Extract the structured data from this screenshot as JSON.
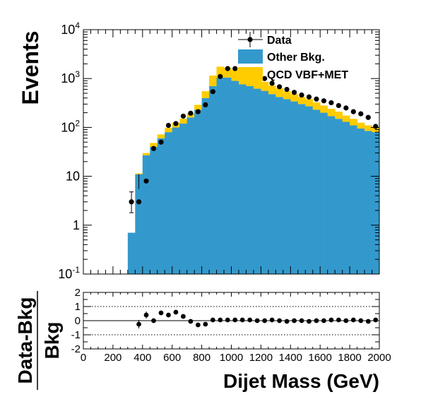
{
  "chart_data": [
    {
      "type": "bar",
      "panel": "main",
      "ylabel": "Events",
      "xlim": [
        0,
        2000
      ],
      "ylim": [
        0.1,
        10000
      ],
      "yscale": "log",
      "y_tick_labels": [
        "10-1",
        "1",
        "10",
        "102",
        "103",
        "104"
      ],
      "bin_edges": [
        300,
        350,
        400,
        450,
        500,
        550,
        600,
        650,
        700,
        750,
        800,
        850,
        900,
        950,
        1000,
        1050,
        1100,
        1150,
        1200,
        1250,
        1300,
        1350,
        1400,
        1450,
        1500,
        1550,
        1600,
        1650,
        1700,
        1750,
        1800,
        1850,
        1900,
        1950,
        2000
      ],
      "legend_position": "top-right",
      "legend": [
        "Data",
        "Other Bkg.",
        "QCD VBF+MET"
      ],
      "series": [
        {
          "name": "Other Bkg.",
          "color": "#3399cc",
          "style": "stacked-histogram",
          "values": [
            0.7,
            11,
            27,
            40,
            60,
            80,
            100,
            120,
            160,
            230,
            400,
            700,
            1050,
            1050,
            900,
            760,
            700,
            620,
            560,
            480,
            420,
            380,
            340,
            300,
            270,
            230,
            200,
            170,
            150,
            130,
            110,
            95,
            85,
            80
          ]
        },
        {
          "name": "QCD VBF+MET",
          "color": "#ffcc00",
          "style": "stacked-histogram",
          "values": [
            0,
            0.5,
            3,
            8,
            12,
            18,
            25,
            30,
            35,
            60,
            150,
            450,
            700,
            600,
            600,
            560,
            420,
            380,
            300,
            240,
            210,
            170,
            140,
            120,
            110,
            95,
            80,
            70,
            60,
            45,
            40,
            30,
            25,
            20
          ]
        },
        {
          "name": "Data",
          "color": "#000000",
          "style": "points-with-errors",
          "x": [
            375,
            425,
            475,
            525,
            575,
            625,
            675,
            725,
            775,
            825,
            875,
            925,
            975,
            1025,
            1075,
            1125,
            1175,
            1225,
            1275,
            1325,
            1375,
            1425,
            1475,
            1525,
            1575,
            1625,
            1675,
            1725,
            1775,
            1825,
            1875,
            1925,
            1975
          ],
          "values": [
            3,
            8,
            37,
            50,
            110,
            120,
            170,
            195,
            210,
            290,
            540,
            1100,
            1600,
            1600,
            1500,
            1300,
            1100,
            1000,
            800,
            680,
            600,
            520,
            460,
            420,
            380,
            350,
            320,
            280,
            250,
            210,
            190,
            160,
            105
          ],
          "first_point": {
            "x": 325,
            "value": 3.0,
            "err_low": 1.8,
            "err_high": 4.8
          }
        }
      ]
    },
    {
      "type": "scatter",
      "panel": "ratio",
      "ylabel": "Data-Bkg / Bkg",
      "ylabel_numerator": "Data-Bkg",
      "ylabel_denominator": "Bkg",
      "xlabel": "Dijet Mass (GeV)",
      "xlim": [
        0,
        2000
      ],
      "ylim": [
        -2,
        2
      ],
      "x_ticks": [
        0,
        200,
        400,
        600,
        800,
        1000,
        1200,
        1400,
        1600,
        1800,
        2000
      ],
      "y_ticks": [
        -2,
        -1,
        0,
        1,
        2
      ],
      "reference_lines": [
        -1,
        0,
        1
      ],
      "x": [
        375,
        425,
        475,
        525,
        575,
        625,
        675,
        725,
        775,
        825,
        875,
        925,
        975,
        1025,
        1075,
        1125,
        1175,
        1225,
        1275,
        1325,
        1375,
        1425,
        1475,
        1525,
        1575,
        1625,
        1675,
        1725,
        1775,
        1825,
        1875,
        1925,
        1975
      ],
      "values": [
        -0.25,
        0.4,
        0.0,
        0.55,
        0.4,
        0.6,
        0.3,
        -0.05,
        -0.3,
        -0.25,
        0.05,
        0.05,
        0.05,
        0.05,
        0.05,
        0.05,
        0.0,
        0.0,
        0.05,
        0.0,
        -0.05,
        0.0,
        0.0,
        -0.05,
        0.0,
        0.0,
        0.05,
        0.05,
        0.0,
        0.05,
        0.0,
        -0.05,
        0.05
      ],
      "errors": [
        0.3,
        0.25,
        0.1,
        0.1,
        0.08,
        0.08,
        0.06,
        0.05,
        0.05,
        0.04,
        0.03,
        0.03,
        0.03,
        0.03,
        0.03,
        0.03,
        0.03,
        0.03,
        0.03,
        0.03,
        0.03,
        0.03,
        0.03,
        0.03,
        0.03,
        0.03,
        0.03,
        0.03,
        0.03,
        0.03,
        0.03,
        0.03,
        0.03
      ]
    }
  ]
}
